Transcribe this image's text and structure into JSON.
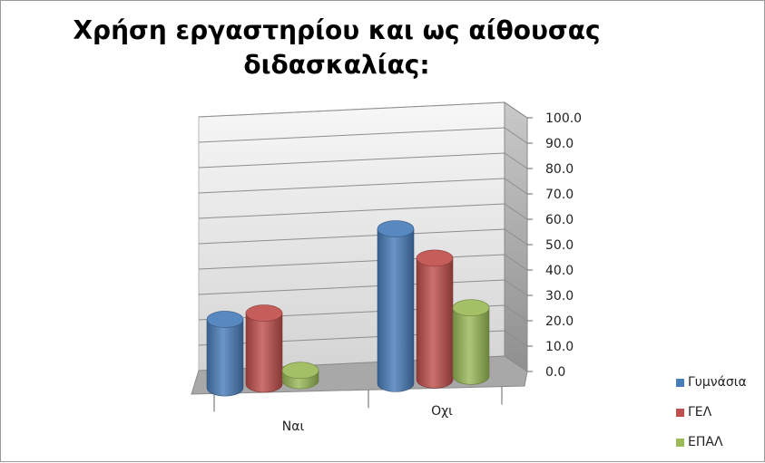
{
  "chart_data": {
    "type": "bar",
    "title": "Χρήση εργαστηρίου και ως αίθουσας διδασκαλίας:",
    "categories": [
      "Ναι",
      "Οχι"
    ],
    "series": [
      {
        "name": "Γυμνάσια",
        "values": [
          27,
          61
        ],
        "color": "#4a7ebb"
      },
      {
        "name": "ΓΕΛ",
        "values": [
          28,
          48
        ],
        "color": "#c0504d"
      },
      {
        "name": "ΕΠΑΛ",
        "values": [
          4,
          27
        ],
        "color": "#9bbb59"
      }
    ],
    "ylim": [
      0,
      100
    ],
    "yticks": [
      "0.0",
      "10.0",
      "20.0",
      "30.0",
      "40.0",
      "50.0",
      "60.0",
      "70.0",
      "80.0",
      "90.0",
      "100.0"
    ],
    "xlabel": "",
    "ylabel": "",
    "grid": true,
    "legend_position": "right",
    "style": "3d-cylinder"
  }
}
